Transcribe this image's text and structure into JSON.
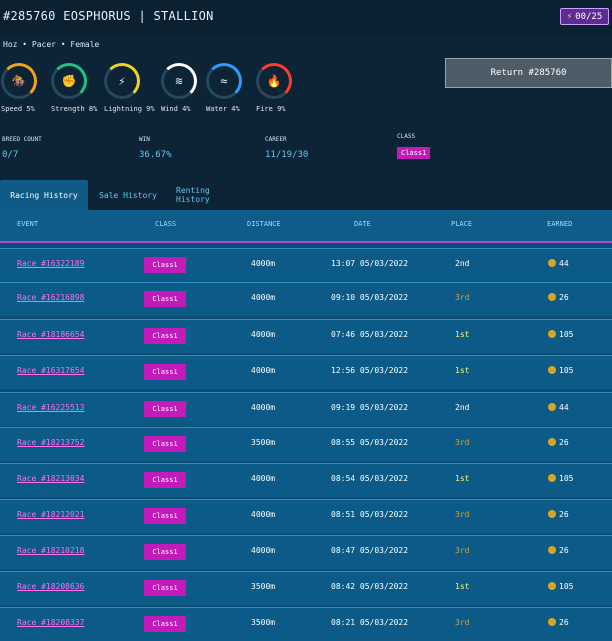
{
  "header": {
    "title": "#285760 EOSPHORUS | STALLION",
    "energy": "00/25",
    "subinfo": "Hoz • Pacer • Female"
  },
  "stats": [
    {
      "label": "Speed 5%",
      "color": "#f7a11a",
      "icon": "runner-icon",
      "glyph": "🏇"
    },
    {
      "label": "Strength 8%",
      "color": "#1fc47e",
      "icon": "fist-icon",
      "glyph": "✊"
    },
    {
      "label": "Lightning 9%",
      "color": "#f0d21f",
      "icon": "lightning-icon",
      "glyph": "⚡"
    },
    {
      "label": "Wind 4%",
      "color": "#ffffff",
      "icon": "wind-icon",
      "glyph": "≋"
    },
    {
      "label": "Water 4%",
      "color": "#2d9cff",
      "icon": "water-icon",
      "glyph": "≈"
    },
    {
      "label": "Fire 9%",
      "color": "#ff3b2f",
      "icon": "fire-icon",
      "glyph": "🔥"
    }
  ],
  "metrics": {
    "breed_label": "BREED COUNT",
    "breed_value": "0/7",
    "win_label": "WIN",
    "win_value": "36.67%",
    "career_label": "CAREER",
    "career_value": "11/19/30",
    "class_label": "CLASS",
    "class_value": "Class1"
  },
  "buttons": {
    "return": "Return #285760"
  },
  "tabs": [
    {
      "label": "Racing History"
    },
    {
      "label": "Sale History"
    },
    {
      "label": "Renting History"
    }
  ],
  "table": {
    "headers": [
      "EVENT",
      "CLASS",
      "DISTANCE",
      "DATE",
      "PLACE",
      "EARNED"
    ],
    "rows": [
      {
        "event": "Race #16322189",
        "class": "Class1",
        "distance": "4000m",
        "date": "13:07 05/03/2022",
        "place": "2nd",
        "earned": "44"
      },
      {
        "event": "Race #16216898",
        "class": "Class1",
        "distance": "4000m",
        "date": "09:10 05/03/2022",
        "place": "3rd",
        "earned": "26"
      },
      {
        "event": "Race #18186654",
        "class": "Class1",
        "distance": "4000m",
        "date": "07:46 05/03/2022",
        "place": "1st",
        "earned": "105"
      },
      {
        "event": "Race #16317654",
        "class": "Class1",
        "distance": "4000m",
        "date": "12:56 05/03/2022",
        "place": "1st",
        "earned": "105"
      },
      {
        "event": "Race #16225513",
        "class": "Class1",
        "distance": "4000m",
        "date": "09:19 05/03/2022",
        "place": "2nd",
        "earned": "44"
      },
      {
        "event": "Race #18213752",
        "class": "Class1",
        "distance": "3500m",
        "date": "08:55 05/03/2022",
        "place": "3rd",
        "earned": "26"
      },
      {
        "event": "Race #18213034",
        "class": "Class1",
        "distance": "4000m",
        "date": "08:54 05/03/2022",
        "place": "1st",
        "earned": "105"
      },
      {
        "event": "Race #18212021",
        "class": "Class1",
        "distance": "4000m",
        "date": "08:51 05/03/2022",
        "place": "3rd",
        "earned": "26"
      },
      {
        "event": "Race #18210218",
        "class": "Class1",
        "distance": "4000m",
        "date": "08:47 05/03/2022",
        "place": "3rd",
        "earned": "26"
      },
      {
        "event": "Race #18208636",
        "class": "Class1",
        "distance": "3500m",
        "date": "08:42 05/03/2022",
        "place": "1st",
        "earned": "105"
      },
      {
        "event": "Race #18208337",
        "class": "Class1",
        "distance": "3500m",
        "date": "08:21 05/03/2022",
        "place": "3rd",
        "earned": "26"
      }
    ]
  },
  "colors": {
    "place_1st": "#fff36a",
    "place_2nd": "#ffffff",
    "place_3rd": "#d6a130"
  }
}
